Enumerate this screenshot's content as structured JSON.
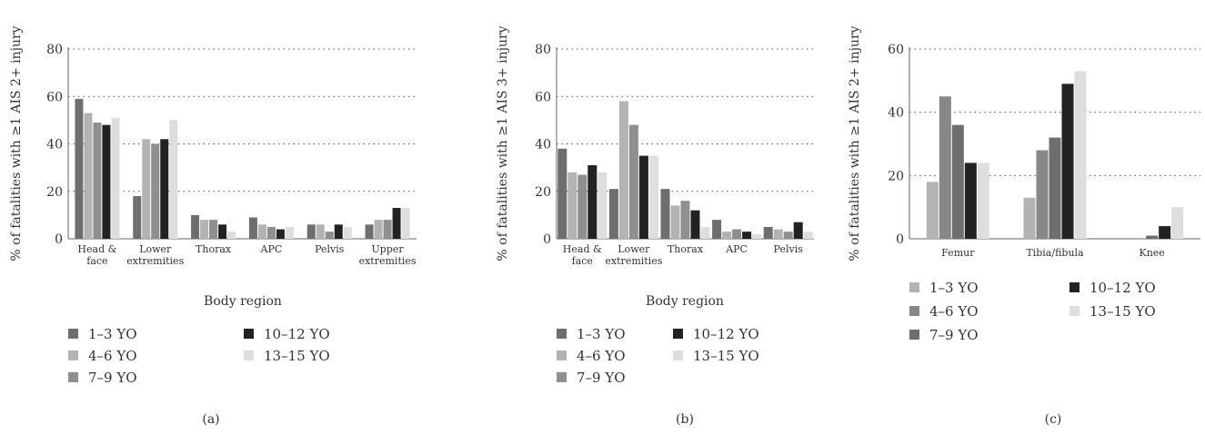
{
  "chart_data": [
    {
      "panel": "(a)",
      "type": "bar",
      "ylabel": "% of fatalities with ≥1 AIS 2+ injury",
      "xlabel": "Body region",
      "ylim": [
        0,
        80
      ],
      "yticks": [
        0,
        20,
        40,
        60,
        80
      ],
      "grid": "horizontal dotted",
      "legend_position": "bottom",
      "categories": [
        [
          "Head &",
          "face"
        ],
        [
          "Lower",
          "extremities"
        ],
        [
          "Thorax"
        ],
        [
          "APC"
        ],
        [
          "Pelvis"
        ],
        [
          "Upper",
          "extremities"
        ]
      ],
      "series": [
        {
          "name": "1–3 YO",
          "color": "#6e6e6e",
          "values": [
            59,
            18,
            10,
            9,
            6,
            6
          ]
        },
        {
          "name": "4–6 YO",
          "color": "#b3b3b3",
          "values": [
            53,
            42,
            8,
            6,
            6,
            8
          ]
        },
        {
          "name": "7–9 YO",
          "color": "#8f8f8f",
          "values": [
            49,
            40,
            8,
            5,
            3,
            8
          ]
        },
        {
          "name": "10–12 YO",
          "color": "#222222",
          "values": [
            48,
            42,
            6,
            4,
            6,
            13
          ]
        },
        {
          "name": "13–15 YO",
          "color": "#dedede",
          "values": [
            51,
            50,
            3,
            5,
            5,
            13
          ]
        }
      ]
    },
    {
      "panel": "(b)",
      "type": "bar",
      "ylabel": "% of fatalities with ≥1 AIS 3+ injury",
      "xlabel": "Body region",
      "ylim": [
        0,
        80
      ],
      "yticks": [
        0,
        20,
        40,
        60,
        80
      ],
      "grid": "horizontal dotted",
      "legend_position": "bottom",
      "categories": [
        [
          "Head &",
          "face"
        ],
        [
          "Lower",
          "extremities"
        ],
        [
          "Thorax"
        ],
        [
          "APC"
        ],
        [
          "Pelvis"
        ]
      ],
      "series": [
        {
          "name": "1–3 YO",
          "color": "#6e6e6e",
          "values": [
            38,
            21,
            21,
            8,
            5
          ]
        },
        {
          "name": "4–6 YO",
          "color": "#b3b3b3",
          "values": [
            28,
            58,
            14,
            3,
            4
          ]
        },
        {
          "name": "7–9 YO",
          "color": "#8f8f8f",
          "values": [
            27,
            48,
            16,
            4,
            3
          ]
        },
        {
          "name": "10–12 YO",
          "color": "#222222",
          "values": [
            31,
            35,
            12,
            3,
            7
          ]
        },
        {
          "name": "13–15 YO",
          "color": "#dedede",
          "values": [
            28,
            35,
            5,
            2,
            3
          ]
        }
      ]
    },
    {
      "panel": "(c)",
      "type": "bar",
      "ylabel": "% of fatalities with ≥1 AIS 2+ injury",
      "xlabel": "",
      "ylim": [
        0,
        60
      ],
      "yticks": [
        0,
        20,
        40,
        60
      ],
      "grid": "horizontal dotted",
      "legend_position": "bottom",
      "categories": [
        [
          "Femur"
        ],
        [
          "Tibia/fibula"
        ],
        [
          "Knee"
        ]
      ],
      "series": [
        {
          "name": "1–3 YO",
          "color": "#b3b3b3",
          "values": [
            18,
            13,
            0
          ]
        },
        {
          "name": "4–6 YO",
          "color": "#878787",
          "values": [
            45,
            28,
            0
          ]
        },
        {
          "name": "7–9 YO",
          "color": "#6e6e6e",
          "values": [
            36,
            32,
            1
          ]
        },
        {
          "name": "10–12 YO",
          "color": "#222222",
          "values": [
            24,
            49,
            4
          ]
        },
        {
          "name": "13–15 YO",
          "color": "#dedede",
          "values": [
            24,
            53,
            10
          ]
        }
      ]
    }
  ]
}
